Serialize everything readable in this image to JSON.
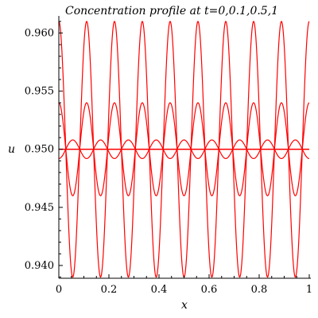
{
  "chart_data": {
    "type": "line",
    "title": "Concentration profile at t=0,0.1,0.5,1",
    "xlabel": "x",
    "ylabel": "u",
    "xlim": [
      0,
      1
    ],
    "ylim": [
      0.9389,
      0.9612
    ],
    "xticks": [
      "0",
      "0.2",
      "0.4",
      "0.6",
      "0.8",
      "1"
    ],
    "yticks": [
      "0.940",
      "0.945",
      "0.950",
      "0.955",
      "0.960"
    ],
    "grid": false,
    "line_color": "#ff0000",
    "series": [
      {
        "mean": 0.95,
        "amplitude": 0.011,
        "cycles": 9
      },
      {
        "mean": 0.95,
        "amplitude": 0.004,
        "cycles": 9
      },
      {
        "mean": 0.95,
        "amplitude": -0.0008,
        "cycles": 9
      },
      {
        "mean": 0.95,
        "amplitude": 0.0,
        "cycles": 9
      }
    ]
  }
}
